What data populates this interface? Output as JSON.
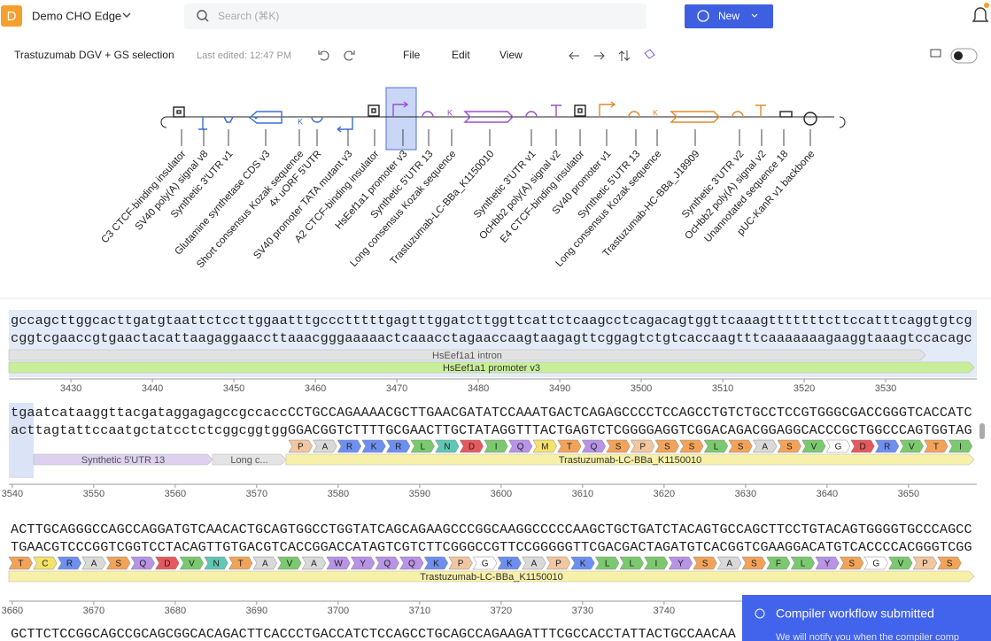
{
  "header": {
    "logo": "D",
    "workspace": "Demo CHO Edge",
    "search_placeholder": "Search (⌘K)",
    "new_button": "New"
  },
  "toolbar": {
    "document_title": "Trastuzumab DGV + GS selection",
    "last_edited": "Last edited: 12:47 PM",
    "menus": [
      "File",
      "Edit",
      "View"
    ]
  },
  "map": {
    "features": [
      "C3 CTCF-binding insulator",
      "SV40 poly(A) signal v8",
      "Synthetic 3'UTR v1",
      "Glutamine synthetase CDS v3",
      "Short consensus Kozak sequence",
      "4x uORF 5'UTR",
      "SV40 promoter TATA mutant v3",
      "A2 CTCF-binding insulator",
      "HsEef1a1 promoter v3",
      "Synthetic 5'UTR 13",
      "Long consensus Kozak sequence",
      "Trastuzumab-LC-BBa_K1150010",
      "Synthetic 3'UTR v1",
      "OcHbb2 poly(A) signal v2",
      "E4 CTCF-binding insulator",
      "SV40 promoter v1",
      "Synthetic 5'UTR 13",
      "Long consensus Kozak sequence",
      "Trastuzumab-HC-BBa_J18909",
      "Synthetic 3'UTR v2",
      "OcHbb2 poly(A) signal v2",
      "Unannotated sequence 18",
      "pUC-KanR v1 backbone"
    ]
  },
  "sequence": {
    "rows": [
      {
        "top": "gccagcttggcacttgatgtaattctccttggaatttgccctttttgagtttggatcttggttcattctcaagcctcagacagtggttcaaagtttttttcttccatttcaggtgtcg",
        "bottom": "cggtcgaaccgtgaactacattaagaggaaccttaaacgggaaaaactcaaacctagaaccaagtaagagttcggagtctgtcaccaagtttcaaaaaaagaaggtaaagtccacagc",
        "amino_acids": [],
        "annotations": [
          "HsEef1a1 intron",
          "HsEef1a1 promoter v3"
        ],
        "ruler": [
          3430,
          3440,
          3450,
          3460,
          3470,
          3480,
          3490,
          3500,
          3510,
          3520,
          3530
        ]
      },
      {
        "top": "tgaatcataaggttacgataggagagccgccaccCCTGCCAGAAAACGCTTGAACGATATCCAAATGACTCAGAGCCCCTCCAGCCTGTCTGCCTCCGTGGGCGACCGGGTCACCATC",
        "bottom": "acttagtattccaatgctatcctctcggcggtggGGACGGTCTTTTGCGAACTTGCTATAGGTTTACTGAGTCTCGGGGAGGTCGGACAGACGGAGGCACCCGCTGGCCCAGTGGTAG",
        "amino_acids": [
          "P",
          "A",
          "R",
          "K",
          "R",
          "L",
          "N",
          "D",
          "I",
          "Q",
          "M",
          "T",
          "Q",
          "S",
          "P",
          "S",
          "S",
          "L",
          "S",
          "A",
          "S",
          "V",
          "G",
          "D",
          "R",
          "V",
          "T",
          "I"
        ],
        "annotations": [
          "Synthetic 5'UTR 13",
          "Long c...",
          "Trastuzumab-LC-BBa_K1150010"
        ],
        "ruler": [
          3540,
          3550,
          3560,
          3570,
          3580,
          3590,
          3600,
          3610,
          3620,
          3630,
          3640,
          3650
        ]
      },
      {
        "top": "ACTTGCAGGGCCAGCCAGGATGTCAACACTGCAGTGGCCTGGTATCAGCAGAAGCCCGGCAAGGCCCCCAAGCTGCTGATCTACAGTGCCAGCTTCCTGTACAGTGGGGTGCCCAGCC",
        "bottom": "TGAACGTCCCGGTCGGTCCTACAGTTGTGACGTCACCGGACCATAGTCGTCTTCGGGCCGTTCCGGGGGTTCGACGACTAGATGTCACGGTCGAAGGACATGTCACCCCACGGGTCGG",
        "amino_acids": [
          "T",
          "C",
          "R",
          "A",
          "S",
          "Q",
          "D",
          "V",
          "N",
          "T",
          "A",
          "V",
          "A",
          "W",
          "Y",
          "Q",
          "Q",
          "K",
          "P",
          "G",
          "K",
          "A",
          "P",
          "K",
          "L",
          "L",
          "I",
          "Y",
          "S",
          "A",
          "S",
          "F",
          "L",
          "Y",
          "S",
          "G",
          "V",
          "P",
          "S"
        ],
        "annotations": [
          "Trastuzumab-LC-BBa_K1150010"
        ],
        "ruler": [
          3660,
          3670,
          3680,
          3690,
          3700,
          3710,
          3720,
          3730,
          3740
        ]
      },
      {
        "top": "GCTTCTCCGGCAGCCGCAGCGGCACAGACTTCACCCTGACCATCTCCAGCCTGCAGCCAGAAGATTTCGCCACCTATTACTGCCAACAA",
        "bottom": "",
        "amino_acids": [],
        "annotations": [],
        "ruler": []
      }
    ]
  },
  "toast": {
    "title": "Compiler workflow submitted",
    "message": "We will notify you when the compiler comp"
  }
}
